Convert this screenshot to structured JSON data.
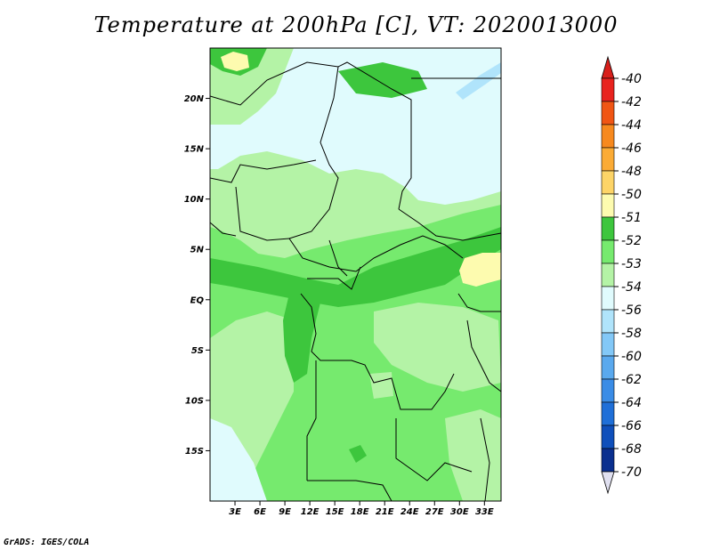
{
  "title": "Temperature at 200hPa [C], VT: 2020013000",
  "credit": "GrADS: IGES/COLA",
  "map": {
    "lat_labels": [
      "20N",
      "15N",
      "10N",
      "5N",
      "EQ",
      "5S",
      "10S",
      "15S"
    ],
    "lon_labels": [
      "3E",
      "6E",
      "9E",
      "12E",
      "15E",
      "18E",
      "21E",
      "24E",
      "27E",
      "30E",
      "33E"
    ],
    "lat_values": [
      20,
      15,
      10,
      5,
      0,
      -5,
      -10,
      -15
    ],
    "lon_values": [
      3,
      6,
      9,
      12,
      15,
      18,
      21,
      24,
      27,
      30,
      33
    ],
    "lon_range": [
      0,
      35
    ],
    "lat_range": [
      -20,
      25
    ]
  },
  "colorbar": {
    "labels": [
      "-40",
      "-42",
      "-44",
      "-46",
      "-48",
      "-50",
      "-51",
      "-52",
      "-53",
      "-54",
      "-56",
      "-58",
      "-60",
      "-62",
      "-64",
      "-66",
      "-68",
      "-70"
    ],
    "colors": [
      "#e8231e",
      "#f05514",
      "#f7891e",
      "#fbab35",
      "#fdd467",
      "#fdfbaf",
      "#3dc63d",
      "#76ea6e",
      "#b4f3a6",
      "#e0fbfd",
      "#b0e4fb",
      "#83c8f7",
      "#5aa9ee",
      "#3a8ce6",
      "#1f6fd8",
      "#0f4fbb",
      "#0a2f8f",
      "#0a1a66"
    ],
    "top_color": "#d81f1b",
    "bottom_color": "#e0e0f0"
  }
}
